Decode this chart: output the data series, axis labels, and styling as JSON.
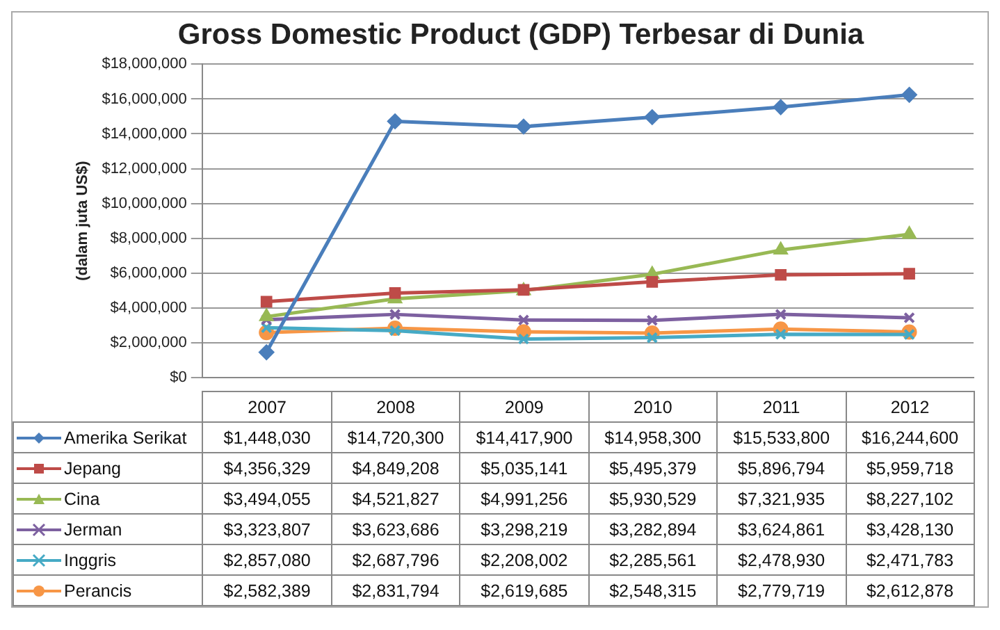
{
  "chart_data": {
    "type": "line",
    "title": "Gross Domestic Product (GDP) Terbesar di Dunia",
    "ylabel": "(dalam juta US$)",
    "categories": [
      "2007",
      "2008",
      "2009",
      "2010",
      "2011",
      "2012"
    ],
    "ylim": [
      0,
      18000000
    ],
    "yticks": [
      {
        "value": 0,
        "label": "$0"
      },
      {
        "value": 2000000,
        "label": "$2,000,000"
      },
      {
        "value": 4000000,
        "label": "$4,000,000"
      },
      {
        "value": 6000000,
        "label": "$6,000,000"
      },
      {
        "value": 8000000,
        "label": "$8,000,000"
      },
      {
        "value": 10000000,
        "label": "$10,000,000"
      },
      {
        "value": 12000000,
        "label": "$12,000,000"
      },
      {
        "value": 14000000,
        "label": "$14,000,000"
      },
      {
        "value": 16000000,
        "label": "$16,000,000"
      },
      {
        "value": 18000000,
        "label": "$18,000,000"
      }
    ],
    "grid": "y",
    "legend": "bottom",
    "series": [
      {
        "name": "Amerika Serikat",
        "color": "#4a7ebb",
        "marker": "diamond",
        "values": [
          1448030,
          14720300,
          14417900,
          14958300,
          15533800,
          16244600
        ],
        "value_labels": [
          "$1,448,030",
          "$14,720,300",
          "$14,417,900",
          "$14,958,300",
          "$15,533,800",
          "$16,244,600"
        ]
      },
      {
        "name": "Jepang",
        "color": "#be4b48",
        "marker": "square",
        "values": [
          4356329,
          4849208,
          5035141,
          5495379,
          5896794,
          5959718
        ],
        "value_labels": [
          "$4,356,329",
          "$4,849,208",
          "$5,035,141",
          "$5,495,379",
          "$5,896,794",
          "$5,959,718"
        ]
      },
      {
        "name": "Cina",
        "color": "#98b954",
        "marker": "triangle",
        "values": [
          3494055,
          4521827,
          4991256,
          5930529,
          7321935,
          8227102
        ],
        "value_labels": [
          "$3,494,055",
          "$4,521,827",
          "$4,991,256",
          "$5,930,529",
          "$7,321,935",
          "$8,227,102"
        ]
      },
      {
        "name": "Jerman",
        "color": "#7d60a0",
        "marker": "cross",
        "values": [
          3323807,
          3623686,
          3298219,
          3282894,
          3624861,
          3428130
        ],
        "value_labels": [
          "$3,323,807",
          "$3,623,686",
          "$3,298,219",
          "$3,282,894",
          "$3,624,861",
          "$3,428,130"
        ]
      },
      {
        "name": "Inggris",
        "color": "#46aac5",
        "marker": "cross",
        "values": [
          2857080,
          2687796,
          2208002,
          2285561,
          2478930,
          2471783
        ],
        "value_labels": [
          "$2,857,080",
          "$2,687,796",
          "$2,208,002",
          "$2,285,561",
          "$2,478,930",
          "$2,471,783"
        ]
      },
      {
        "name": "Perancis",
        "color": "#f79646",
        "marker": "circle",
        "values": [
          2582389,
          2831794,
          2619685,
          2548315,
          2779719,
          2612878
        ],
        "value_labels": [
          "$2,582,389",
          "$2,831,794",
          "$2,619,685",
          "$2,548,315",
          "$2,779,719",
          "$2,612,878"
        ]
      }
    ]
  }
}
